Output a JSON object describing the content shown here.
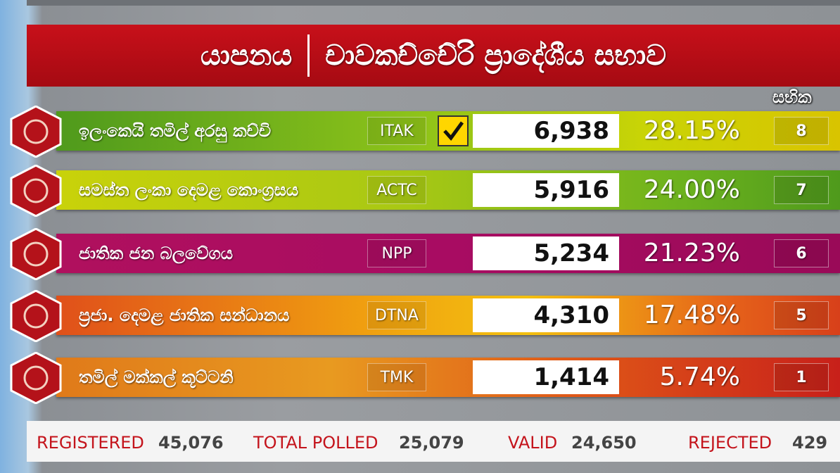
{
  "header": {
    "title_left": "යාපනය",
    "title_right": "චාවකච්චේරි ප්‍රාදේශීය සභාව"
  },
  "seats_label": "සභික",
  "rows": [
    {
      "name": "ඉලංකෙයි තමිල් අරසු කච්චි",
      "abbr": "ITAK",
      "votes": "6,938",
      "percent": "28.15%",
      "seats": "8"
    },
    {
      "name": "සමස්ත ලංකා දෙමළ කොංග්‍රසය",
      "abbr": "ACTC",
      "votes": "5,916",
      "percent": "24.00%",
      "seats": "7"
    },
    {
      "name": "ජාතික ජන බලවේගය",
      "abbr": "NPP",
      "votes": "5,234",
      "percent": "21.23%",
      "seats": "6"
    },
    {
      "name": "ප්‍රජා. දෙමළ ජාතික සන්ධානය",
      "abbr": "DTNA",
      "votes": "4,310",
      "percent": "17.48%",
      "seats": "5"
    },
    {
      "name": "තමිල් මක්කල් කූට්ටනි",
      "abbr": "TMK",
      "votes": "1,414",
      "percent": "5.74%",
      "seats": "1"
    }
  ],
  "footer": [
    {
      "label": "REGISTERED",
      "value": "45,076"
    },
    {
      "label": "TOTAL POLLED",
      "value": "25,079"
    },
    {
      "label": "VALID",
      "value": "24,650"
    },
    {
      "label": "REJECTED",
      "value": "429"
    }
  ]
}
